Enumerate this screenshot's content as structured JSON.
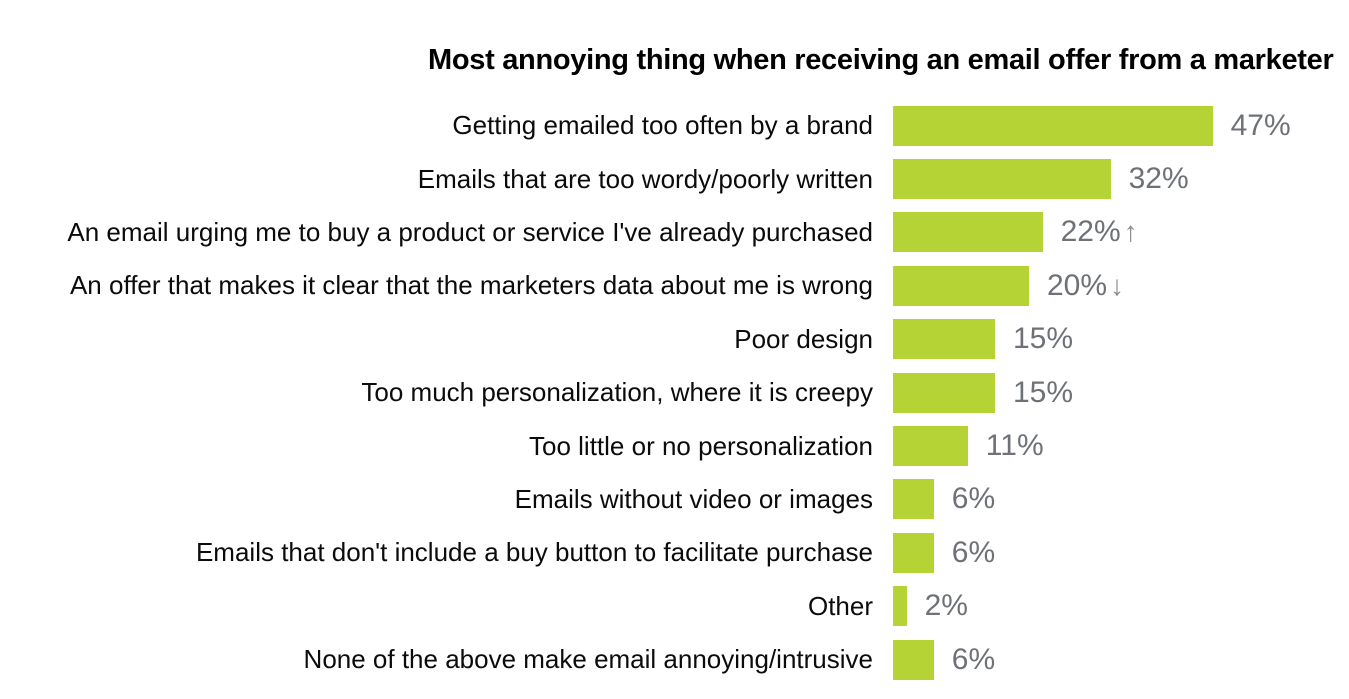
{
  "colors": {
    "background": "#ffffff",
    "bar": "#b5d334",
    "value_text": "#6e7277",
    "arrow": "#8a8d92",
    "label_text": "#0b0b0b",
    "title_text": "#000000"
  },
  "chart_data": {
    "type": "bar",
    "orientation": "horizontal",
    "title": "Most annoying thing when receiving an email offer from a marketer",
    "unit": "%",
    "grid": false,
    "legend": "none",
    "axes_visible": false,
    "xlim": [
      0,
      50
    ],
    "categories": [
      "Getting emailed too often by a brand",
      "Emails that are too wordy/poorly written",
      "An email urging me to buy a product or service I've already purchased",
      "An offer that makes it clear that the marketers data about me is wrong",
      "Poor design",
      "Too much personalization, where it is creepy",
      "Too little or no personalization",
      "Emails without video or images",
      "Emails that don't include a buy button to facilitate purchase",
      "Other",
      "None of the above make email annoying/intrusive"
    ],
    "values": [
      47,
      32,
      22,
      20,
      15,
      15,
      11,
      6,
      6,
      2,
      6
    ],
    "value_labels": [
      "47%",
      "32%",
      "22%",
      "20%",
      "15%",
      "15%",
      "11%",
      "6%",
      "6%",
      "2%",
      "6%"
    ],
    "trend": [
      "",
      "",
      "up",
      "down",
      "",
      "",
      "",
      "",
      "",
      "",
      ""
    ],
    "arrow_glyphs": {
      "up": "↑",
      "down": "↓"
    }
  }
}
